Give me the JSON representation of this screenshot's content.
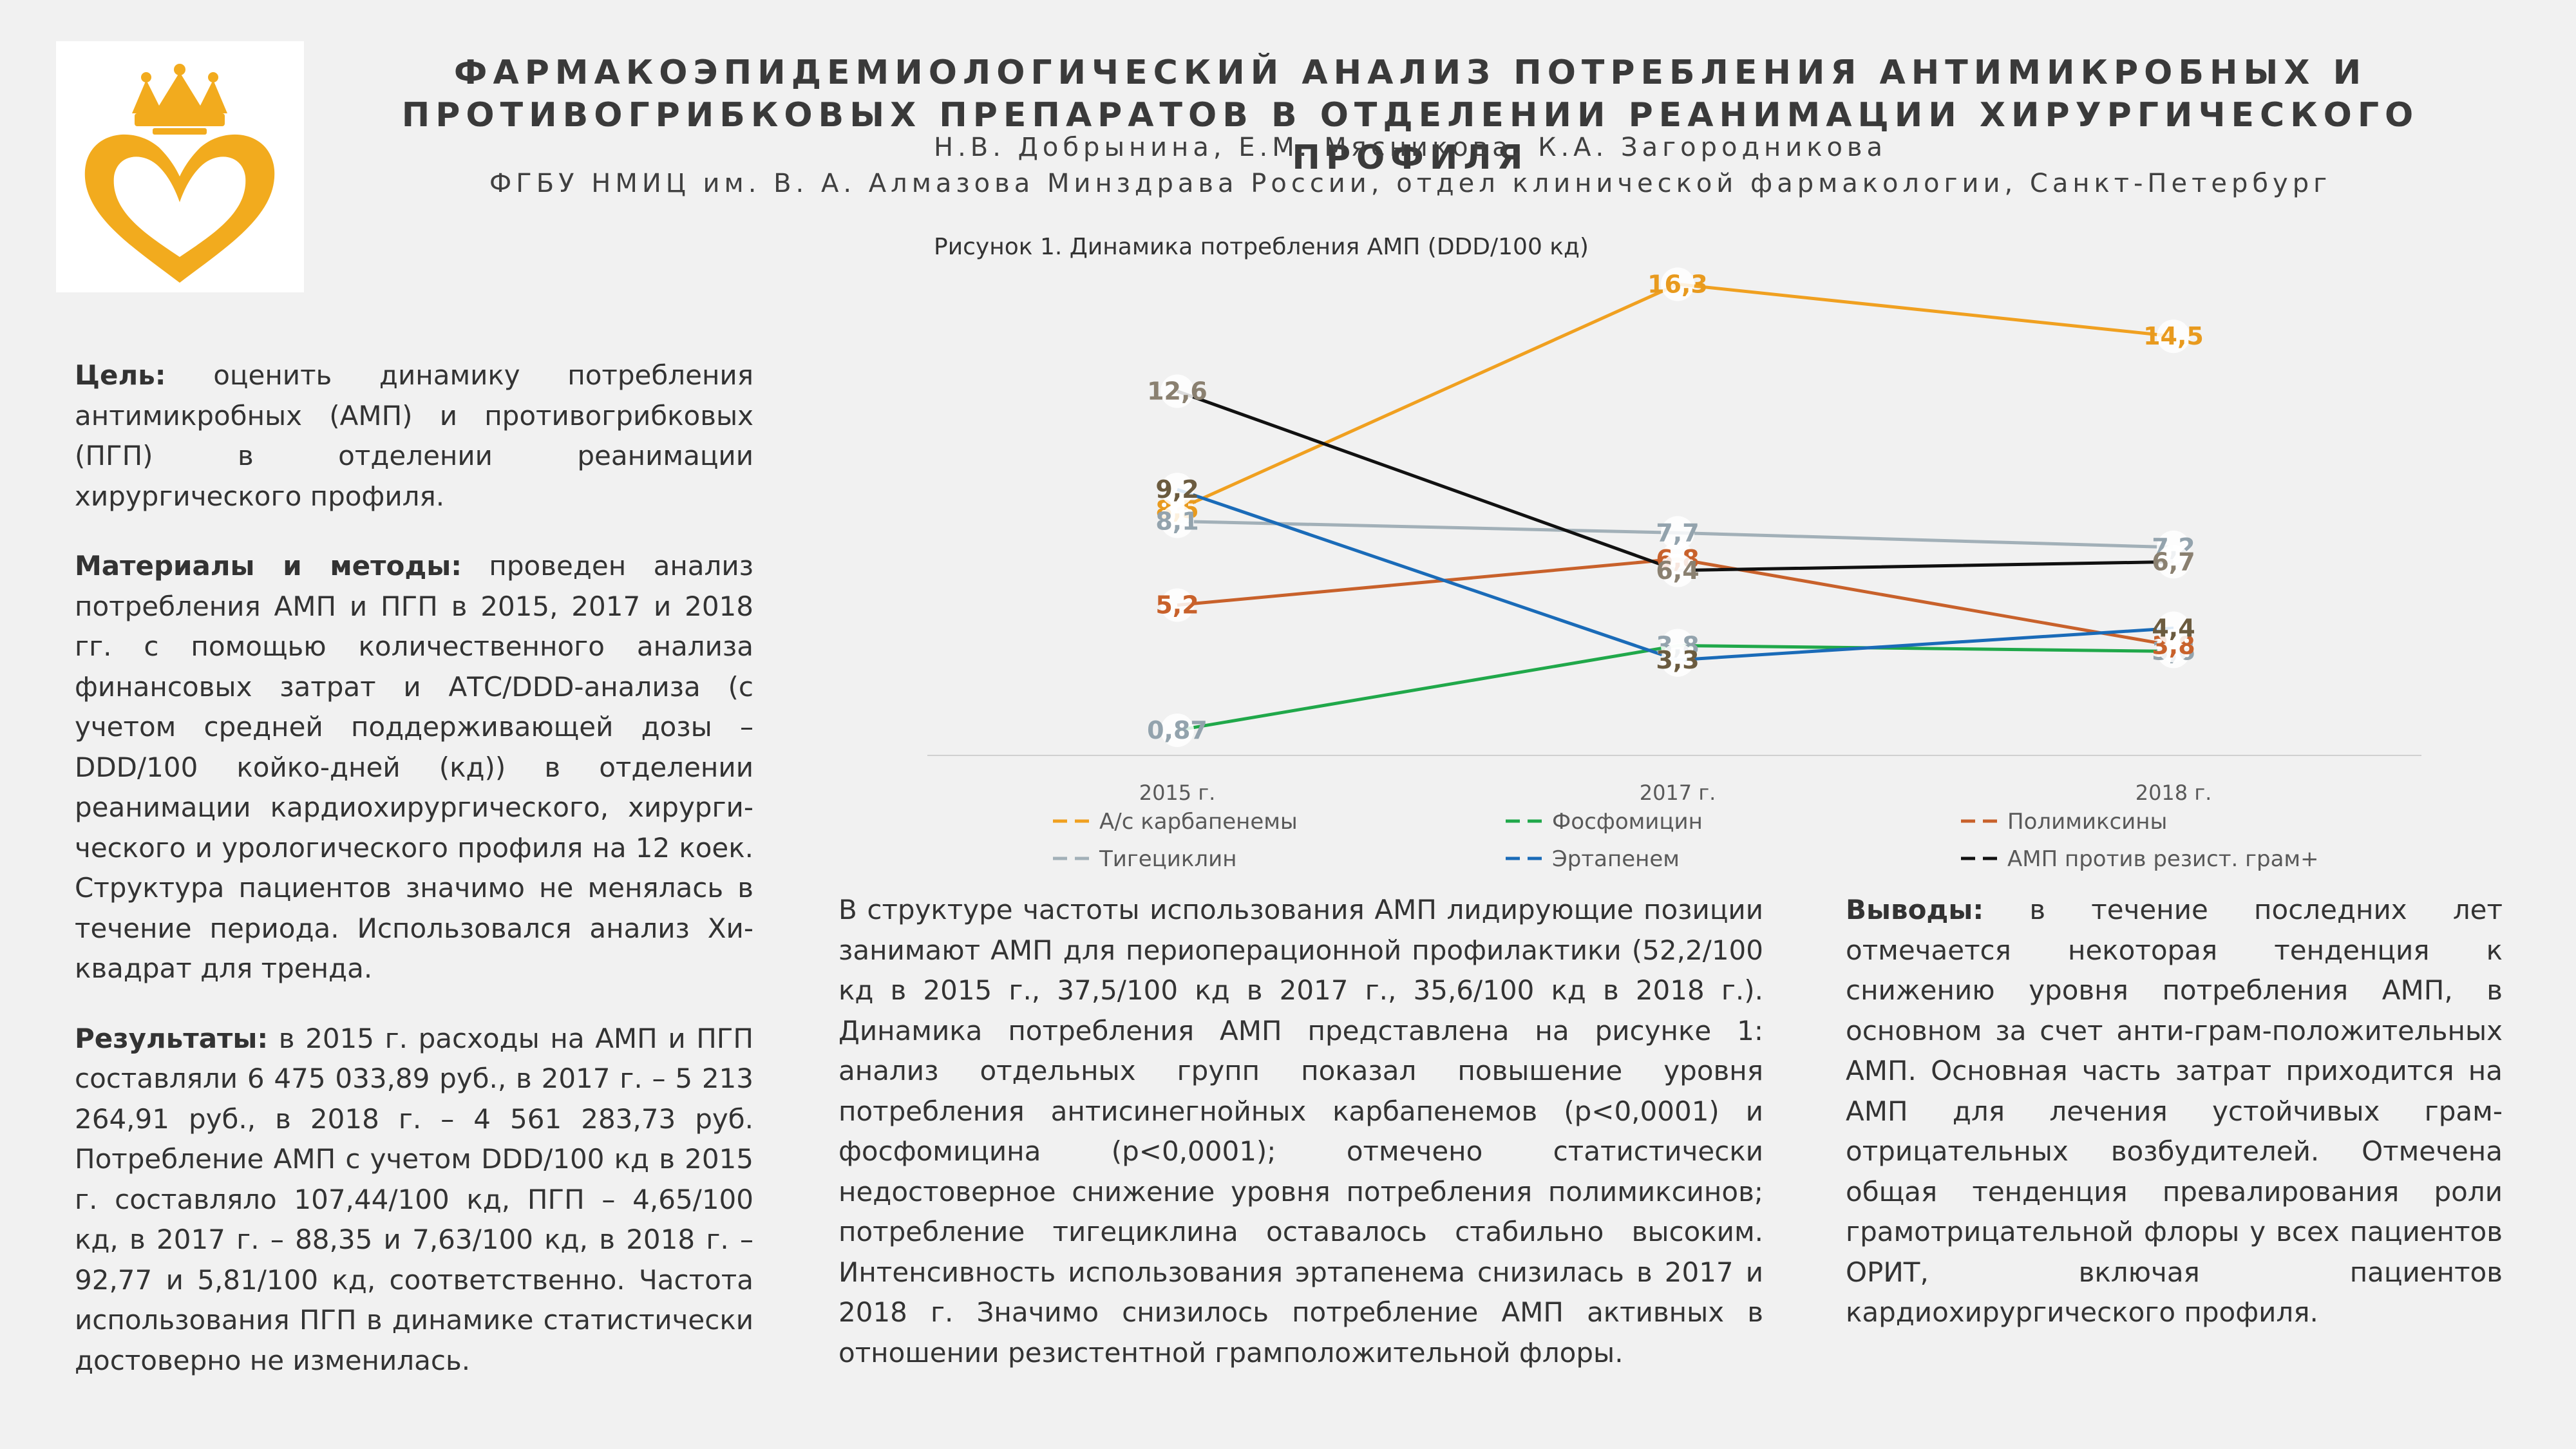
{
  "header": {
    "title_line1": "ФАРМАКОЭПИДЕМИОЛОГИЧЕСКИЙ АНАЛИЗ ПОТРЕБЛЕНИЯ АНТИМИКРОБНЫХ И",
    "title_line2": "ПРОТИВОГРИБКОВЫХ ПРЕПАРАТОВ В ОТДЕЛЕНИИ РЕАНИМАЦИИ ХИРУРГИЧЕСКОГО ПРОФИЛЯ",
    "authors": "Н.В. Добрынина, Е.М. Мясникова, К.А. Загородникова",
    "affiliation": "ФГБУ НМИЦ им. В. А. Алмазова Минздрава России, отдел клинической фармакологии, Санкт-Петербург"
  },
  "left": {
    "goal_label": "Цель:",
    "goal_text": " оценить динамику потребления антимикробных (АМП) и противогрибковых (ПГП) в отделении реанимации хирургического профиля.",
    "methods_label": "Материалы и методы:",
    "methods_text": " проведен анализ потребления АМП и ПГП в 2015, 2017 и 2018 гг. с помощью количественного анализа финансовых затрат и АТС/DDD-анализа (с учетом средней поддерживающей дозы – DDD/100 койко-дней (кд)) в отделении реанимации кардиохирургического, хирурги-ческого и урологического профиля на 12 коек. Структура пациентов значимо не менялась в течение периода. Использовался анализ Хи-квадрат для тренда.",
    "results_label": "Результаты:",
    "results_text": " в 2015 г. расходы на АМП и ПГП составляли 6 475 033,89 руб., в 2017 г. – 5 213 264,91 руб., в 2018 г. – 4 561 283,73 руб. Потребление АМП с учетом DDD/100 кд в 2015 г. составляло 107,44/100 кд, ПГП – 4,65/100 кд, в 2017 г. – 88,35 и 7,63/100 кд, в 2018 г. – 92,77 и 5,81/100 кд, соответственно. Частота использования ПГП в динамике статистически достоверно не изменилась."
  },
  "middle": {
    "text": "В структуре частоты использования АМП лидирующие позиции занимают АМП для периоперационной профилактики (52,2/100 кд в 2015 г., 37,5/100 кд в 2017 г., 35,6/100 кд в 2018 г.). Динамика потребления АМП представлена на рисунке 1: анализ отдельных групп показал повышение уровня потребления антисинегнойных карбапенемов (р<0,0001) и фосфомицина (р<0,0001); отмечено статистически недостоверное снижение уровня потребления полимиксинов; потребление тигециклина оставалось стабильно высоким. Интенсивность использования эртапенема снизилась в 2017 и 2018 г. Значимо снизилось потребление АМП активных в отношении резистентной грамположительной флоры."
  },
  "right": {
    "conclusions_label": "Выводы:",
    "conclusions_text": " в течение последних лет отмечается некоторая тенденция к снижению уровня потребления АМП, в основном за счет анти-грам-положительных АМП. Основная часть затрат приходится на АМП для лечения устойчивых грам-отрицательных возбудителей. Отмечена общая тенденция превалирования роли грамотрицательной флоры у всех пациентов ОРИТ, включая пациентов кардиохирургического профиля."
  },
  "chart_data": {
    "type": "line",
    "title": "Рисунок 1. Динамика потребления АМП (DDD/100 кд)",
    "categories": [
      "2015 г.",
      "2017 г.",
      "2018 г."
    ],
    "ylim": [
      0,
      17
    ],
    "grid": false,
    "legend_position": "bottom",
    "series": [
      {
        "name": "А/с карбапенемы",
        "values": [
          8.5,
          16.3,
          14.5
        ],
        "labels": [
          "8,5",
          "16,3",
          "14,5"
        ],
        "color": "#f0a020",
        "label_color": "#e89a1e"
      },
      {
        "name": "Фосфомицин",
        "values": [
          0.87,
          3.8,
          3.6
        ],
        "labels": [
          "0,87",
          "3,8",
          "3,6"
        ],
        "color": "#20a84a",
        "label_color": "#93a3ad"
      },
      {
        "name": "Полимиксины",
        "values": [
          5.2,
          6.8,
          3.8
        ],
        "labels": [
          "5,2",
          "6,8",
          "3,8"
        ],
        "color": "#c8612b",
        "label_color": "#c8612b"
      },
      {
        "name": "Тигециклин",
        "values": [
          8.1,
          7.7,
          7.2
        ],
        "labels": [
          "8,1",
          "7,7",
          "7,2"
        ],
        "color": "#a2b0b8",
        "label_color": "#93a3ad"
      },
      {
        "name": "Эртапенем",
        "values": [
          9.2,
          3.3,
          4.4
        ],
        "labels": [
          "9,2",
          "3,3",
          "4,4"
        ],
        "color": "#1a6bb8",
        "label_color": "#6b5b3f"
      },
      {
        "name": "АМП против резист. грам+",
        "values": [
          12.6,
          6.4,
          6.7
        ],
        "labels": [
          "12,6",
          "6,4",
          "6,7"
        ],
        "color": "#111111",
        "label_color": "#8a8070"
      }
    ]
  },
  "colors": {
    "background": "#f1f1f1",
    "logo_gold": "#f2ab1e"
  },
  "icons": {
    "logo": "crowned-heart-logo"
  }
}
